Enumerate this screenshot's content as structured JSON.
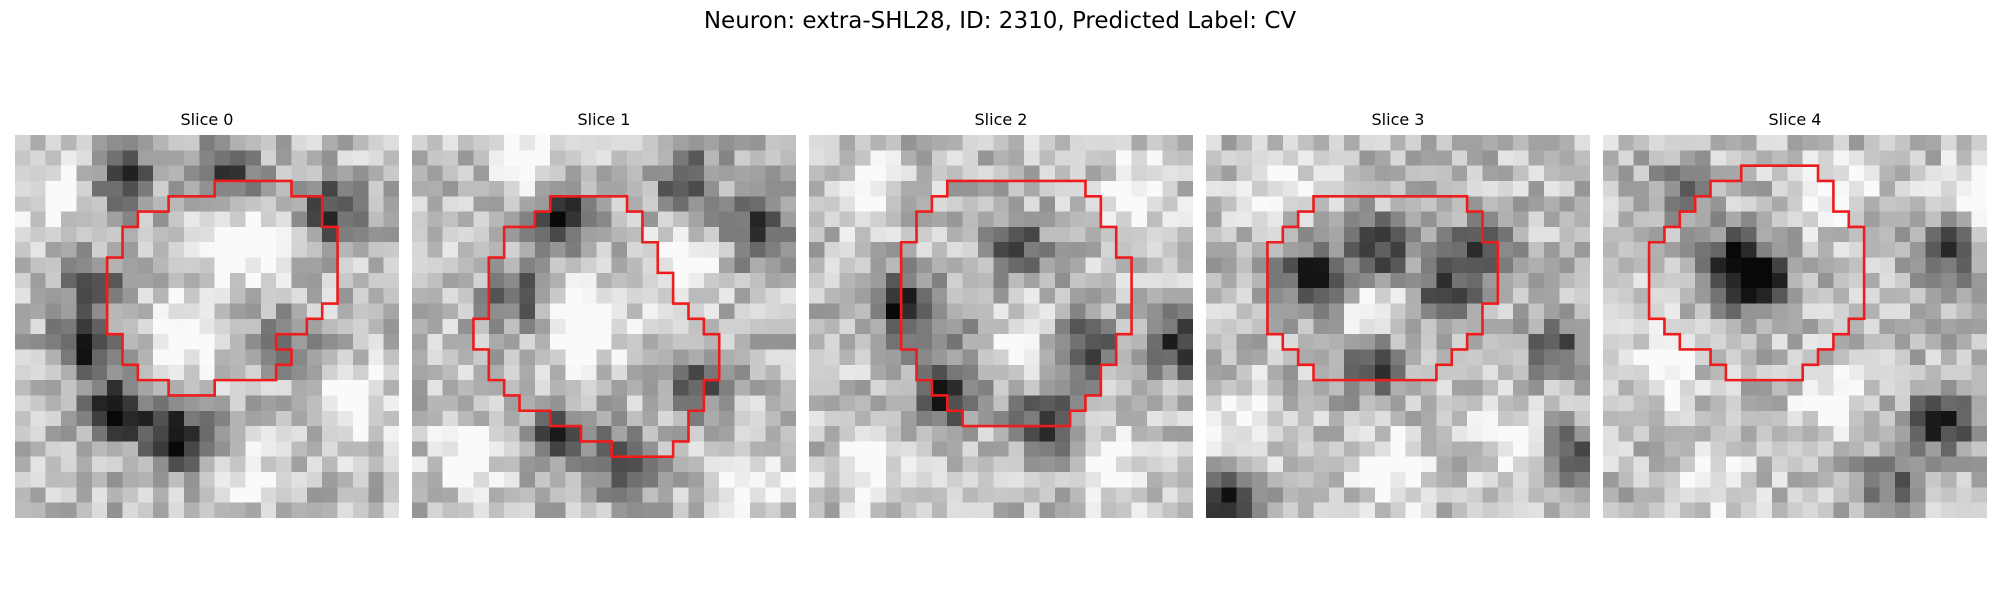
{
  "figure": {
    "title": "Neuron: extra-SHL28, ID: 2310, Predicted Label: CV"
  },
  "contour_color": "#ee1c1c",
  "slices": [
    {
      "title": "Slice 0",
      "dark_spots": [
        [
          0.28,
          0.12,
          0.55
        ],
        [
          0.55,
          0.1,
          0.45
        ],
        [
          0.82,
          0.2,
          0.55
        ],
        [
          0.18,
          0.55,
          0.6
        ],
        [
          0.26,
          0.72,
          0.7
        ],
        [
          0.4,
          0.78,
          0.55
        ],
        [
          0.48,
          0.8,
          0.35
        ],
        [
          0.2,
          0.4,
          0.45
        ],
        [
          0.7,
          0.55,
          0.3
        ]
      ],
      "bright_spots": [
        [
          0.45,
          0.52,
          0.45
        ],
        [
          0.6,
          0.3,
          0.4
        ],
        [
          0.88,
          0.7,
          0.35
        ],
        [
          0.1,
          0.15,
          0.3
        ],
        [
          0.6,
          0.88,
          0.25
        ]
      ],
      "contour": [
        [
          13,
          3
        ],
        [
          18,
          3
        ],
        [
          18,
          4
        ],
        [
          20,
          4
        ],
        [
          20,
          6
        ],
        [
          21,
          6
        ],
        [
          21,
          11
        ],
        [
          20,
          11
        ],
        [
          20,
          12
        ],
        [
          19,
          12
        ],
        [
          19,
          13
        ],
        [
          17,
          13
        ],
        [
          17,
          14
        ],
        [
          18,
          14
        ],
        [
          18,
          15
        ],
        [
          17,
          15
        ],
        [
          17,
          16
        ],
        [
          13,
          16
        ],
        [
          13,
          17
        ],
        [
          10,
          17
        ],
        [
          10,
          16
        ],
        [
          8,
          16
        ],
        [
          8,
          15
        ],
        [
          7,
          15
        ],
        [
          7,
          13
        ],
        [
          6,
          13
        ],
        [
          6,
          8
        ],
        [
          7,
          8
        ],
        [
          7,
          6
        ],
        [
          8,
          6
        ],
        [
          8,
          5
        ],
        [
          10,
          5
        ],
        [
          10,
          4
        ],
        [
          13,
          4
        ]
      ]
    },
    {
      "title": "Slice 1",
      "dark_spots": [
        [
          0.4,
          0.22,
          0.6
        ],
        [
          0.72,
          0.12,
          0.5
        ],
        [
          0.9,
          0.25,
          0.55
        ],
        [
          0.28,
          0.42,
          0.45
        ],
        [
          0.38,
          0.78,
          0.55
        ],
        [
          0.55,
          0.85,
          0.55
        ],
        [
          0.75,
          0.65,
          0.4
        ]
      ],
      "bright_spots": [
        [
          0.45,
          0.5,
          0.5
        ],
        [
          0.3,
          0.05,
          0.3
        ],
        [
          0.7,
          0.35,
          0.35
        ],
        [
          0.15,
          0.85,
          0.3
        ],
        [
          0.9,
          0.9,
          0.25
        ]
      ],
      "contour": [
        [
          9,
          4
        ],
        [
          9,
          5
        ],
        [
          8,
          5
        ],
        [
          8,
          6
        ],
        [
          6,
          6
        ],
        [
          6,
          8
        ],
        [
          5,
          8
        ],
        [
          5,
          12
        ],
        [
          4,
          12
        ],
        [
          4,
          14
        ],
        [
          5,
          14
        ],
        [
          5,
          16
        ],
        [
          6,
          16
        ],
        [
          6,
          17
        ],
        [
          7,
          17
        ],
        [
          7,
          18
        ],
        [
          9,
          18
        ],
        [
          9,
          19
        ],
        [
          11,
          19
        ],
        [
          11,
          20
        ],
        [
          13,
          20
        ],
        [
          13,
          21
        ],
        [
          17,
          21
        ],
        [
          17,
          20
        ],
        [
          18,
          20
        ],
        [
          18,
          18
        ],
        [
          19,
          18
        ],
        [
          19,
          16
        ],
        [
          20,
          16
        ],
        [
          20,
          13
        ],
        [
          19,
          13
        ],
        [
          19,
          12
        ],
        [
          18,
          12
        ],
        [
          18,
          11
        ],
        [
          17,
          11
        ],
        [
          17,
          9
        ],
        [
          16,
          9
        ],
        [
          16,
          7
        ],
        [
          15,
          7
        ],
        [
          15,
          5
        ],
        [
          14,
          5
        ],
        [
          14,
          4
        ]
      ]
    },
    {
      "title": "Slice 2",
      "dark_spots": [
        [
          0.25,
          0.45,
          0.7
        ],
        [
          0.35,
          0.68,
          0.65
        ],
        [
          0.62,
          0.75,
          0.55
        ],
        [
          0.72,
          0.55,
          0.5
        ],
        [
          0.55,
          0.3,
          0.45
        ],
        [
          0.97,
          0.55,
          0.6
        ],
        [
          0.45,
          0.5,
          0.35
        ]
      ],
      "bright_spots": [
        [
          0.52,
          0.52,
          0.35
        ],
        [
          0.15,
          0.15,
          0.3
        ],
        [
          0.85,
          0.15,
          0.3
        ],
        [
          0.15,
          0.88,
          0.35
        ],
        [
          0.8,
          0.88,
          0.3
        ]
      ],
      "contour": [
        [
          9,
          3
        ],
        [
          18,
          3
        ],
        [
          18,
          4
        ],
        [
          19,
          4
        ],
        [
          19,
          6
        ],
        [
          20,
          6
        ],
        [
          20,
          8
        ],
        [
          21,
          8
        ],
        [
          21,
          13
        ],
        [
          20,
          13
        ],
        [
          20,
          15
        ],
        [
          19,
          15
        ],
        [
          19,
          17
        ],
        [
          18,
          17
        ],
        [
          18,
          18
        ],
        [
          17,
          18
        ],
        [
          17,
          19
        ],
        [
          10,
          19
        ],
        [
          10,
          18
        ],
        [
          9,
          18
        ],
        [
          9,
          17
        ],
        [
          8,
          17
        ],
        [
          8,
          16
        ],
        [
          7,
          16
        ],
        [
          7,
          14
        ],
        [
          6,
          14
        ],
        [
          6,
          7
        ],
        [
          7,
          7
        ],
        [
          7,
          5
        ],
        [
          8,
          5
        ],
        [
          8,
          4
        ],
        [
          9,
          4
        ]
      ]
    },
    {
      "title": "Slice 3",
      "dark_spots": [
        [
          0.28,
          0.38,
          0.75
        ],
        [
          0.45,
          0.3,
          0.55
        ],
        [
          0.62,
          0.42,
          0.55
        ],
        [
          0.45,
          0.6,
          0.5
        ],
        [
          0.72,
          0.3,
          0.5
        ],
        [
          0.92,
          0.55,
          0.45
        ],
        [
          0.95,
          0.85,
          0.55
        ],
        [
          0.05,
          0.95,
          0.55
        ]
      ],
      "bright_spots": [
        [
          0.45,
          0.45,
          0.3
        ],
        [
          0.2,
          0.12,
          0.3
        ],
        [
          0.5,
          0.88,
          0.35
        ],
        [
          0.8,
          0.8,
          0.3
        ],
        [
          0.1,
          0.75,
          0.3
        ]
      ],
      "contour": [
        [
          7,
          4
        ],
        [
          17,
          4
        ],
        [
          17,
          5
        ],
        [
          18,
          5
        ],
        [
          18,
          7
        ],
        [
          19,
          7
        ],
        [
          19,
          11
        ],
        [
          18,
          11
        ],
        [
          18,
          13
        ],
        [
          17,
          13
        ],
        [
          17,
          14
        ],
        [
          16,
          14
        ],
        [
          16,
          15
        ],
        [
          15,
          15
        ],
        [
          15,
          16
        ],
        [
          7,
          16
        ],
        [
          7,
          15
        ],
        [
          6,
          15
        ],
        [
          6,
          14
        ],
        [
          5,
          14
        ],
        [
          5,
          13
        ],
        [
          4,
          13
        ],
        [
          4,
          7
        ],
        [
          5,
          7
        ],
        [
          5,
          6
        ],
        [
          6,
          6
        ],
        [
          6,
          5
        ],
        [
          7,
          5
        ]
      ]
    },
    {
      "title": "Slice 4",
      "dark_spots": [
        [
          0.4,
          0.38,
          0.85
        ],
        [
          0.33,
          0.32,
          0.45
        ],
        [
          0.9,
          0.3,
          0.55
        ],
        [
          0.88,
          0.75,
          0.6
        ],
        [
          0.75,
          0.9,
          0.35
        ],
        [
          0.2,
          0.15,
          0.3
        ]
      ],
      "bright_spots": [
        [
          0.15,
          0.6,
          0.35
        ],
        [
          0.6,
          0.7,
          0.35
        ],
        [
          0.98,
          0.15,
          0.4
        ],
        [
          0.6,
          0.15,
          0.3
        ],
        [
          0.3,
          0.9,
          0.25
        ]
      ],
      "contour": [
        [
          9,
          2
        ],
        [
          14,
          2
        ],
        [
          14,
          3
        ],
        [
          15,
          3
        ],
        [
          15,
          5
        ],
        [
          16,
          5
        ],
        [
          16,
          6
        ],
        [
          17,
          6
        ],
        [
          17,
          12
        ],
        [
          16,
          12
        ],
        [
          16,
          13
        ],
        [
          15,
          13
        ],
        [
          15,
          14
        ],
        [
          14,
          14
        ],
        [
          14,
          15
        ],
        [
          13,
          15
        ],
        [
          13,
          16
        ],
        [
          8,
          16
        ],
        [
          8,
          15
        ],
        [
          7,
          15
        ],
        [
          7,
          14
        ],
        [
          5,
          14
        ],
        [
          5,
          13
        ],
        [
          4,
          13
        ],
        [
          4,
          12
        ],
        [
          3,
          12
        ],
        [
          3,
          7
        ],
        [
          4,
          7
        ],
        [
          4,
          6
        ],
        [
          5,
          6
        ],
        [
          5,
          5
        ],
        [
          6,
          5
        ],
        [
          6,
          4
        ],
        [
          7,
          4
        ],
        [
          7,
          3
        ],
        [
          9,
          3
        ]
      ]
    }
  ]
}
